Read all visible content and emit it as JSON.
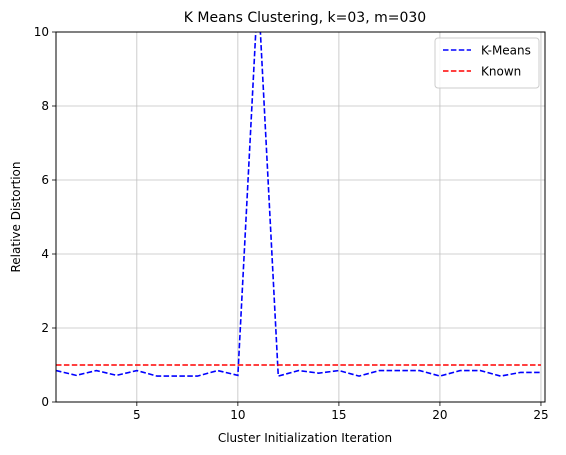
{
  "chart_data": {
    "type": "line",
    "title": "K Means Clustering, k=03, m=030",
    "xlabel": "Cluster Initialization Iteration",
    "ylabel": "Relative Distortion",
    "xlim": [
      1,
      25.2
    ],
    "ylim": [
      0,
      10
    ],
    "xticks": [
      5,
      10,
      15,
      20,
      25
    ],
    "yticks": [
      0,
      2,
      4,
      6,
      8,
      10
    ],
    "grid": true,
    "legend_position": "top-right",
    "series": [
      {
        "name": "K-Means",
        "color": "#0000ff",
        "style": "dashed",
        "x": [
          1,
          2,
          3,
          4,
          5,
          6,
          7,
          8,
          9,
          10,
          11,
          12,
          13,
          14,
          15,
          16,
          17,
          18,
          19,
          20,
          21,
          22,
          23,
          24,
          25
        ],
        "values": [
          0.85,
          0.72,
          0.85,
          0.72,
          0.85,
          0.7,
          0.7,
          0.7,
          0.85,
          0.72,
          11.2,
          0.7,
          0.85,
          0.78,
          0.85,
          0.7,
          0.85,
          0.85,
          0.85,
          0.7,
          0.85,
          0.85,
          0.7,
          0.8,
          0.8
        ]
      },
      {
        "name": "Known",
        "color": "#ff0000",
        "style": "dashed",
        "x": [
          1,
          25
        ],
        "values": [
          1.0,
          1.0
        ]
      }
    ]
  }
}
